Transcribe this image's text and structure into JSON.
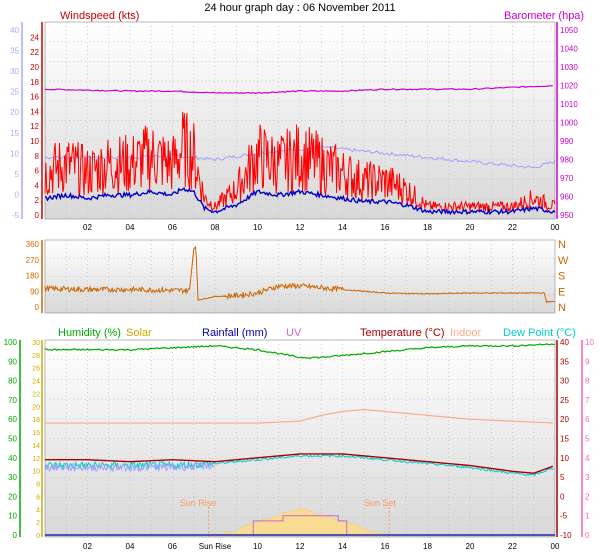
{
  "title": "24 hour graph day : 06 November 2011",
  "colors": {
    "wind": "#ff0000",
    "gust": "#ff0000",
    "avg_wind": "#0000cc",
    "baro": "#cc00cc",
    "temp_fill": "#a0a0ff",
    "humidity": "#00aa00",
    "solar": "#ccaa00",
    "rain": "#0000aa",
    "uv": "#cc66cc",
    "temperature": "#aa0000",
    "indoor": "#ffaa88",
    "dew": "#00cccc",
    "dir": "#cc6600",
    "grid": "#cccccc",
    "left_axis": "#aaaaff",
    "right_axis_top": "#cc00cc",
    "right_axis_bot": "#ff66aa"
  },
  "x_ticks": [
    "02",
    "04",
    "06",
    "08",
    "10",
    "12",
    "14",
    "16",
    "18",
    "20",
    "22",
    "00"
  ],
  "x_ticks_bottom": [
    "02",
    "04",
    "06",
    "Sun Rise",
    "10",
    "12",
    "14",
    "16",
    "18",
    "20",
    "22",
    "00"
  ],
  "chart_data": [
    {
      "type": "line",
      "panel": "wind_baro",
      "labels": {
        "left": "Windspeed (kts)",
        "right": "Barometer (hpa)"
      },
      "left_ticks_red": [
        0,
        2,
        4,
        6,
        8,
        10,
        12,
        14,
        16,
        18,
        20,
        22,
        24
      ],
      "left_ticks_blue": [
        -5,
        0,
        5,
        10,
        15,
        20,
        25,
        30,
        35,
        40
      ],
      "right_ticks": [
        950,
        960,
        970,
        980,
        990,
        1000,
        1010,
        1020,
        1030,
        1040,
        1050
      ],
      "ylim_wind": [
        0,
        25
      ],
      "ylim_baro": [
        950,
        1050
      ],
      "series": [
        {
          "name": "Windspeed",
          "hours": [
            0,
            1,
            2,
            3,
            4,
            5,
            6,
            6.5,
            7,
            7.5,
            8,
            8.5,
            9,
            10,
            11,
            12,
            13,
            14,
            15,
            16,
            17,
            18,
            19,
            20,
            21,
            22,
            23,
            24
          ],
          "values": [
            5,
            6,
            5,
            6,
            6,
            7,
            6,
            8,
            7,
            2,
            1,
            2,
            3,
            7,
            6,
            7,
            6,
            5,
            4,
            4,
            3,
            1,
            1,
            1,
            1,
            1,
            2,
            1
          ]
        },
        {
          "name": "Barometer",
          "hours": [
            0,
            4,
            6,
            8,
            10,
            12,
            14,
            16,
            18,
            20,
            22,
            24
          ],
          "values": [
            1018,
            1017,
            1017,
            1016,
            1016,
            1017,
            1017,
            1018,
            1018,
            1018,
            1019,
            1020
          ]
        },
        {
          "name": "Temperature",
          "hours": [
            0,
            2,
            4,
            6,
            7,
            8,
            10,
            12,
            13,
            14,
            16,
            18,
            20,
            22,
            23,
            24
          ],
          "values": [
            9,
            9,
            9,
            9.5,
            9,
            8.5,
            10,
            11,
            11.5,
            11,
            10,
            9,
            8,
            7,
            6.5,
            8
          ]
        }
      ]
    },
    {
      "type": "line",
      "panel": "wind_direction",
      "left_ticks": [
        0,
        90,
        180,
        270,
        360
      ],
      "right_labels": [
        "N",
        "W",
        "S",
        "E",
        "N"
      ],
      "ylim": [
        0,
        360
      ],
      "series": [
        {
          "name": "Direction",
          "hours": [
            0,
            2,
            4,
            6,
            6.8,
            7,
            7.1,
            7.2,
            8,
            9,
            10,
            11,
            12,
            13,
            14,
            15,
            16,
            18,
            20,
            22,
            23.5,
            23.6,
            24
          ],
          "values": [
            105,
            100,
            100,
            95,
            95,
            330,
            350,
            40,
            60,
            65,
            80,
            120,
            120,
            110,
            100,
            90,
            80,
            75,
            80,
            80,
            80,
            30,
            30
          ]
        }
      ]
    },
    {
      "type": "line",
      "panel": "humidity_temp",
      "labels": {
        "humidity": "Humidity (%)",
        "solar": "Solar",
        "rain": "Rainfall (mm)",
        "uv": "UV",
        "temp": "Temperature (°C)",
        "indoor": "Indoor",
        "dew": "Dew Point (°C)"
      },
      "annotations": [
        "Sun Rise",
        "Sun Set"
      ],
      "left_ticks_green": [
        0,
        10,
        20,
        30,
        40,
        50,
        60,
        70,
        80,
        90,
        100
      ],
      "left_ticks_gold": [
        0,
        2,
        4,
        6,
        8,
        10,
        12,
        14,
        16,
        18,
        20,
        22,
        24,
        26,
        28,
        30
      ],
      "right_ticks_red": [
        -10,
        -5,
        0,
        5,
        10,
        15,
        20,
        25,
        30,
        35,
        40
      ],
      "right_ticks_pink": [
        0,
        1,
        2,
        3,
        4,
        5,
        6,
        7,
        8,
        9,
        10
      ],
      "series": [
        {
          "name": "Humidity",
          "hours": [
            0,
            4,
            6,
            8,
            10,
            12,
            13,
            14,
            16,
            18,
            20,
            22,
            24
          ],
          "values": [
            96,
            96,
            97,
            98,
            96,
            92,
            92,
            93,
            95,
            97,
            98,
            98,
            99
          ]
        },
        {
          "name": "Temperature",
          "hours": [
            0,
            2,
            4,
            6,
            8,
            10,
            12,
            13,
            14,
            16,
            18,
            20,
            22,
            23,
            24
          ],
          "values": [
            9.5,
            9.5,
            9,
            9.5,
            9,
            10,
            11,
            11,
            11,
            10,
            9,
            8,
            6.5,
            6,
            8
          ]
        },
        {
          "name": "Dew Point",
          "hours": [
            0,
            2,
            4,
            6,
            8,
            10,
            12,
            13,
            14,
            16,
            18,
            20,
            22,
            23,
            24
          ],
          "values": [
            8,
            8,
            8,
            8,
            8.5,
            9.5,
            10.5,
            10.5,
            10.5,
            9.5,
            8.5,
            7.5,
            6,
            5.5,
            7.5
          ]
        },
        {
          "name": "Indoor",
          "hours": [
            0,
            4,
            8,
            10,
            12,
            13,
            14,
            15,
            16,
            18,
            20,
            22,
            24
          ],
          "values": [
            19,
            19,
            19,
            19,
            19.5,
            21,
            22,
            22.5,
            22,
            21,
            20,
            19.5,
            19
          ]
        },
        {
          "name": "Solar",
          "hours": [
            7.8,
            9,
            10,
            11,
            12,
            13,
            14,
            15,
            16
          ],
          "values": [
            0,
            0.5,
            2,
            3,
            4,
            3,
            2,
            1,
            0
          ]
        }
      ],
      "sunrise_hour": 7.7,
      "sunset_hour": 16.2
    }
  ]
}
